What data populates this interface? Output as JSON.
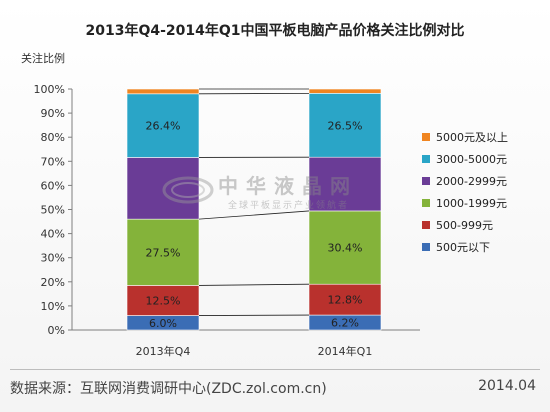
{
  "title": "2013年Q4-2014年Q1中国平板电脑产品价格关注比例对比",
  "footer": {
    "source": "数据来源：互联网消费调研中心(ZDC.zol.com.cn)",
    "date": "2014.04"
  },
  "watermark": {
    "name": "中华液晶网",
    "tagline": "全球平板显示产业领航者",
    "logo_text": "FPDisplay"
  },
  "colors": {
    "s500below": "#3b6db5",
    "s500_999": "#b9312d",
    "s1000_1999": "#84b33a",
    "s2000_2999": "#6a3c96",
    "s3000_5000": "#2aa5c7",
    "s5000plus": "#f08521"
  },
  "chart_data": {
    "type": "bar",
    "stacked": true,
    "title": "2013年Q4-2014年Q1中国平板电脑产品价格关注比例对比",
    "ylabel": "关注比例",
    "xlabel": "",
    "categories": [
      "2013年Q4",
      "2014年Q1"
    ],
    "ylim": [
      0,
      100
    ],
    "yticks": [
      "0%",
      "10%",
      "20%",
      "30%",
      "40%",
      "50%",
      "60%",
      "70%",
      "80%",
      "90%",
      "100%"
    ],
    "series": [
      {
        "name": "500元以下",
        "values": [
          6.0,
          6.2
        ],
        "labels": [
          "6.0%",
          "6.2%"
        ],
        "color": "#3b6db5"
      },
      {
        "name": "500-999元",
        "values": [
          12.5,
          12.8
        ],
        "labels": [
          "12.5%",
          "12.8%"
        ],
        "color": "#b9312d"
      },
      {
        "name": "1000-1999元",
        "values": [
          27.5,
          30.4
        ],
        "labels": [
          "27.5%",
          "30.4%"
        ],
        "color": "#84b33a"
      },
      {
        "name": "2000-2999元",
        "values": [
          25.6,
          22.3
        ],
        "labels": [
          "",
          ""
        ],
        "color": "#6a3c96"
      },
      {
        "name": "3000-5000元",
        "values": [
          26.4,
          26.5
        ],
        "labels": [
          "26.4%",
          "26.5%"
        ],
        "color": "#2aa5c7"
      },
      {
        "name": "5000元及以上",
        "values": [
          2.0,
          1.8
        ],
        "labels": [
          "",
          ""
        ],
        "color": "#f08521"
      }
    ],
    "legend_position": "right",
    "grid": false
  }
}
